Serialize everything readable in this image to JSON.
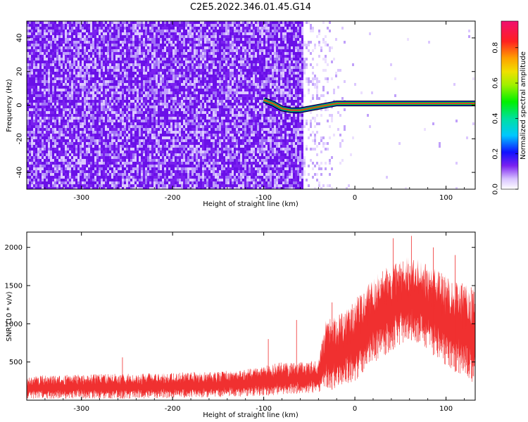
{
  "title": "C2E5.2022.346.01.45.G14",
  "colors": {
    "signal": "#f03030",
    "noise": "#6a10e8",
    "snr": "#f03030",
    "frame": "#000000"
  },
  "chart_data": [
    {
      "type": "heatmap",
      "xlabel": "Height of straight line (km)",
      "ylabel": "Frequency (Hz)",
      "xlim": [
        -360,
        132
      ],
      "ylim": [
        -50,
        50
      ],
      "xticks": [
        "-300",
        "-200",
        "-100",
        "0",
        "100"
      ],
      "yticks": [
        "-40",
        "-20",
        "0",
        "20",
        "40"
      ],
      "colorbar": {
        "label": "Normalized spectral amplitude",
        "range": [
          0.0,
          0.95
        ],
        "ticks": [
          "0.0",
          "0.2",
          "0.4",
          "0.6",
          "0.8"
        ],
        "colormap": "rainbow"
      },
      "noise_edge_x": -58,
      "signal_track": [
        [
          -100,
          3
        ],
        [
          -90,
          1
        ],
        [
          -80,
          -2
        ],
        [
          -70,
          -3
        ],
        [
          -60,
          -3
        ],
        [
          -50,
          -2
        ],
        [
          -40,
          -1
        ],
        [
          -30,
          0
        ],
        [
          -20,
          1
        ],
        [
          0,
          1
        ],
        [
          132,
          1
        ]
      ]
    },
    {
      "type": "line",
      "xlabel": "Height of straight line (km)",
      "ylabel": "SNR (10 * v/v)",
      "xlim": [
        -360,
        132
      ],
      "ylim": [
        0,
        2200
      ],
      "xticks": [
        "-300",
        "-200",
        "-100",
        "0",
        "100"
      ],
      "yticks": [
        "500",
        "1000",
        "1500",
        "2000"
      ],
      "envelope": {
        "x": [
          -360,
          -300,
          -250,
          -200,
          -150,
          -120,
          -100,
          -80,
          -60,
          -40,
          -32,
          -20,
          0,
          20,
          40,
          60,
          80,
          100,
          132
        ],
        "lower": [
          20,
          20,
          20,
          25,
          40,
          50,
          60,
          70,
          90,
          100,
          120,
          150,
          250,
          450,
          650,
          800,
          650,
          450,
          200
        ],
        "upper": [
          320,
          340,
          350,
          360,
          380,
          400,
          450,
          500,
          500,
          520,
          1050,
          1100,
          1300,
          1650,
          1800,
          1900,
          1800,
          1650,
          1450
        ]
      }
    }
  ]
}
